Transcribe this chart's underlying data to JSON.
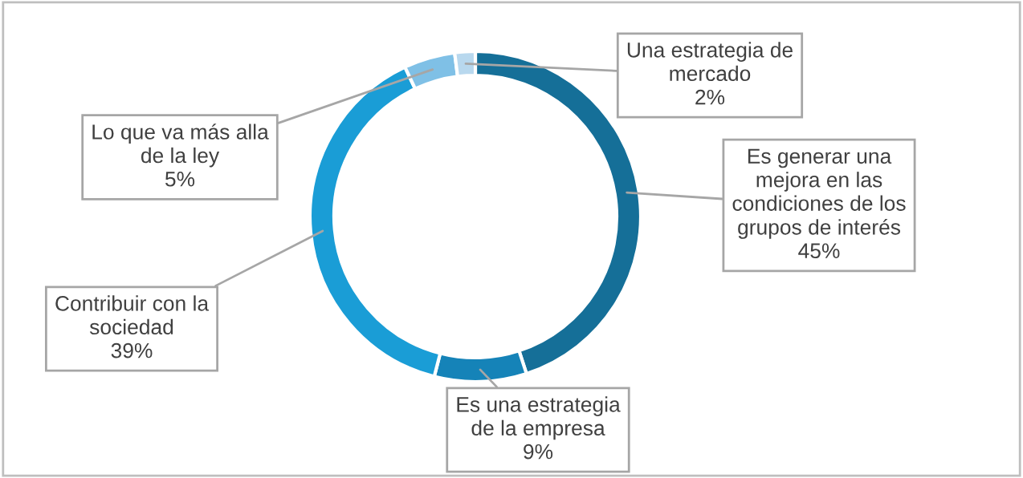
{
  "chart_data": {
    "type": "donut",
    "categories": [
      "Es generar una\nmejora en las\ncondiciones de los\ngrupos de interés",
      "Es una estrategia\nde la empresa",
      "Contribuir con la\nsociedad",
      "Lo que va más alla\nde la ley",
      "Una estrategia de\nmercado"
    ],
    "values": [
      45,
      9,
      39,
      5,
      2
    ],
    "value_labels": [
      "45%",
      "9%",
      "39%",
      "5%",
      "2%"
    ],
    "colors": [
      "#156f98",
      "#1583b8",
      "#1a9dd6",
      "#7fc0e6",
      "#b8d8ee"
    ],
    "legend": false
  }
}
